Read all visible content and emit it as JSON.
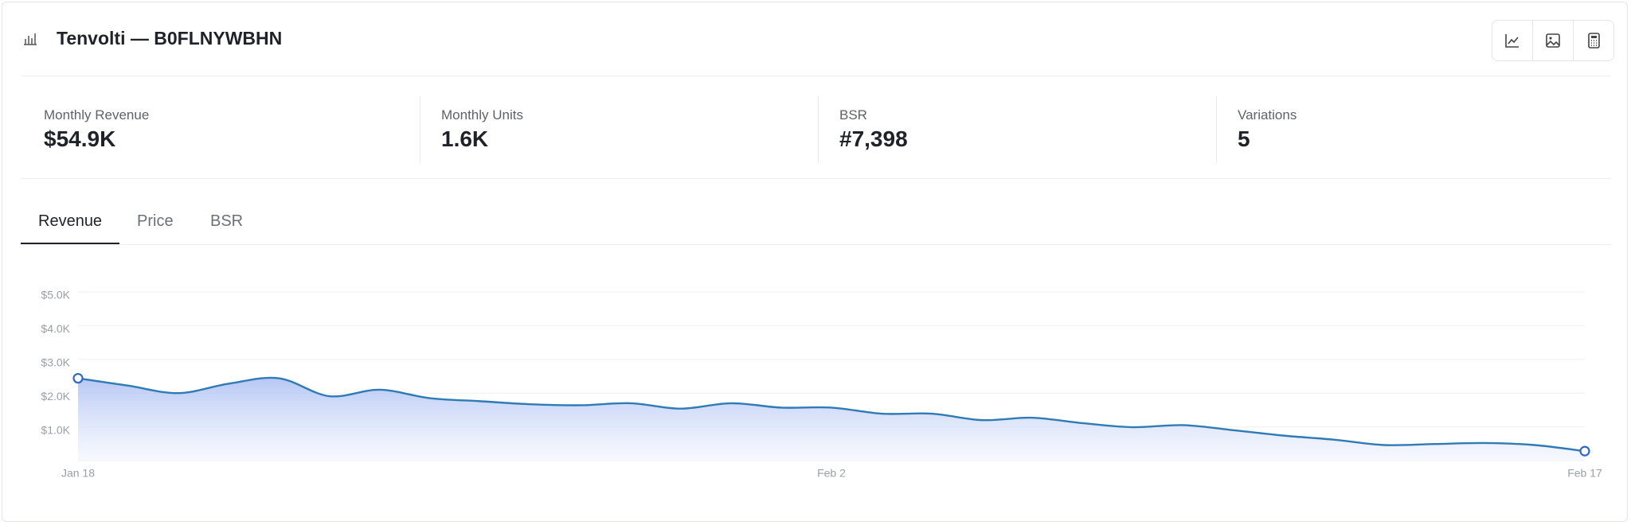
{
  "header": {
    "title": "Tenvolti — B0FLNYWBHN"
  },
  "metrics": [
    {
      "label": "Monthly Revenue",
      "value": "$54.9K"
    },
    {
      "label": "Monthly Units",
      "value": "1.6K"
    },
    {
      "label": "BSR",
      "value": "#7,398"
    },
    {
      "label": "Variations",
      "value": "5"
    }
  ],
  "tabs": [
    "Revenue",
    "Price",
    "BSR"
  ],
  "chart_data": {
    "type": "line",
    "categories": [
      "Jan 18",
      null,
      null,
      null,
      null,
      null,
      null,
      null,
      null,
      null,
      null,
      null,
      null,
      null,
      null,
      "Feb 2",
      null,
      null,
      null,
      null,
      null,
      null,
      null,
      null,
      null,
      null,
      null,
      null,
      null,
      null,
      "Feb 17"
    ],
    "values": [
      2440,
      2220,
      2000,
      2280,
      2440,
      1910,
      2100,
      1850,
      1760,
      1670,
      1640,
      1700,
      1540,
      1700,
      1570,
      1570,
      1390,
      1390,
      1200,
      1270,
      1110,
      990,
      1050,
      900,
      740,
      620,
      460,
      490,
      520,
      460,
      280
    ],
    "color": "#2f7bb5",
    "ylim": [
      0,
      5000
    ],
    "yticks": [
      {
        "value": 1000,
        "label": "$1.0K"
      },
      {
        "value": 2000,
        "label": "$2.0K"
      },
      {
        "value": 3000,
        "label": "$3.0K"
      },
      {
        "value": 4000,
        "label": "$4.0K"
      },
      {
        "value": 5000,
        "label": "$5.0K"
      }
    ],
    "grid": true
  }
}
